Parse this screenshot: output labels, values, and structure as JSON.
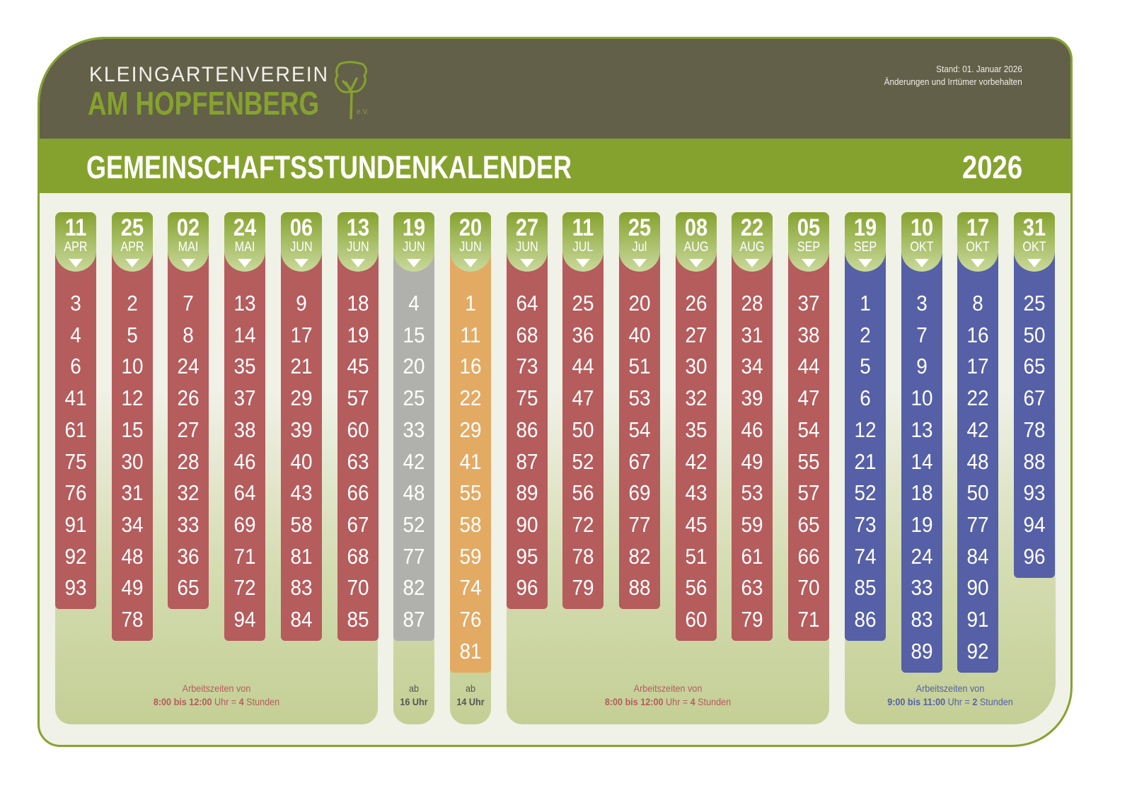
{
  "header": {
    "logo_line1": "KLEINGARTENVEREIN",
    "logo_line2": "AM HOPFENBERG",
    "logo_suffix": "e.V.",
    "stand": "Stand:  01. Januar 2026",
    "disclaimer": "Änderungen und Irrtümer vorbehalten"
  },
  "title": "GEMEINSCHAFTSSTUNDENKALENDER",
  "year": "2026",
  "colors": {
    "red": "#b55c5c",
    "gray": "#b0b1ad",
    "orange": "#e3aa63",
    "blue": "#5560a6",
    "green": "#86a22e"
  },
  "columns": [
    {
      "day": "11",
      "month": "APR",
      "color": "red",
      "numbers": [
        3,
        4,
        6,
        41,
        61,
        75,
        76,
        91,
        92,
        93
      ]
    },
    {
      "day": "25",
      "month": "APR",
      "color": "red",
      "numbers": [
        2,
        5,
        10,
        12,
        15,
        30,
        31,
        34,
        48,
        49,
        78
      ]
    },
    {
      "day": "02",
      "month": "MAI",
      "color": "red",
      "numbers": [
        7,
        8,
        24,
        26,
        27,
        28,
        32,
        33,
        36,
        65
      ]
    },
    {
      "day": "24",
      "month": "MAI",
      "color": "red",
      "numbers": [
        13,
        14,
        35,
        37,
        38,
        46,
        64,
        69,
        71,
        72,
        94
      ]
    },
    {
      "day": "06",
      "month": "JUN",
      "color": "red",
      "numbers": [
        9,
        17,
        21,
        29,
        39,
        40,
        43,
        58,
        81,
        83,
        84
      ]
    },
    {
      "day": "13",
      "month": "JUN",
      "color": "red",
      "numbers": [
        18,
        19,
        45,
        57,
        60,
        63,
        66,
        67,
        68,
        70,
        85
      ]
    },
    {
      "day": "19",
      "month": "JUN",
      "color": "gray",
      "numbers": [
        4,
        15,
        20,
        25,
        33,
        42,
        48,
        52,
        77,
        82,
        87
      ]
    },
    {
      "day": "20",
      "month": "JUN",
      "color": "orange",
      "numbers": [
        1,
        11,
        16,
        22,
        29,
        41,
        55,
        58,
        59,
        74,
        76,
        81
      ]
    },
    {
      "day": "27",
      "month": "JUN",
      "color": "red",
      "numbers": [
        64,
        68,
        73,
        75,
        86,
        87,
        89,
        90,
        95,
        96
      ]
    },
    {
      "day": "11",
      "month": "JUL",
      "color": "red",
      "numbers": [
        25,
        36,
        44,
        47,
        50,
        52,
        56,
        72,
        78,
        79
      ]
    },
    {
      "day": "25",
      "month": "Jul",
      "color": "red",
      "numbers": [
        20,
        40,
        51,
        53,
        54,
        67,
        69,
        77,
        82,
        88
      ]
    },
    {
      "day": "08",
      "month": "AUG",
      "color": "red",
      "numbers": [
        26,
        27,
        30,
        32,
        35,
        42,
        43,
        45,
        51,
        56,
        60
      ]
    },
    {
      "day": "22",
      "month": "AUG",
      "color": "red",
      "numbers": [
        28,
        31,
        34,
        39,
        46,
        49,
        53,
        59,
        61,
        63,
        79
      ]
    },
    {
      "day": "05",
      "month": "SEP",
      "color": "red",
      "numbers": [
        37,
        38,
        44,
        47,
        54,
        55,
        57,
        65,
        66,
        70,
        71
      ]
    },
    {
      "day": "19",
      "month": "SEP",
      "color": "blue",
      "numbers": [
        1,
        2,
        5,
        6,
        12,
        21,
        52,
        73,
        74,
        85,
        86
      ]
    },
    {
      "day": "10",
      "month": "OKT",
      "color": "blue",
      "numbers": [
        3,
        7,
        9,
        10,
        13,
        14,
        18,
        19,
        24,
        33,
        83,
        89
      ]
    },
    {
      "day": "17",
      "month": "OKT",
      "color": "blue",
      "numbers": [
        8,
        16,
        17,
        22,
        42,
        48,
        50,
        77,
        84,
        90,
        91,
        92
      ]
    },
    {
      "day": "31",
      "month": "OKT",
      "color": "blue",
      "numbers": [
        25,
        50,
        65,
        67,
        78,
        88,
        93,
        94,
        96
      ]
    }
  ],
  "notes": {
    "g1": {
      "line1": "Arbeitszeiten von",
      "bold1": "8:00 bis 12:00",
      "mid": " Uhr = ",
      "bold2": "4",
      "end": " Stunden"
    },
    "g2": {
      "line1": "ab",
      "bold": "16 Uhr"
    },
    "g3": {
      "line1": "ab",
      "bold": "14 Uhr"
    },
    "g4": {
      "line1": "Arbeitszeiten von",
      "bold1": "8:00 bis 12:00",
      "mid": " Uhr = ",
      "bold2": "4",
      "end": " Stunden"
    },
    "g5": {
      "line1": "Arbeitszeiten von",
      "bold1": "9:00 bis 11:00",
      "mid": " Uhr = ",
      "bold2": "2",
      "end": " Stunden"
    }
  }
}
